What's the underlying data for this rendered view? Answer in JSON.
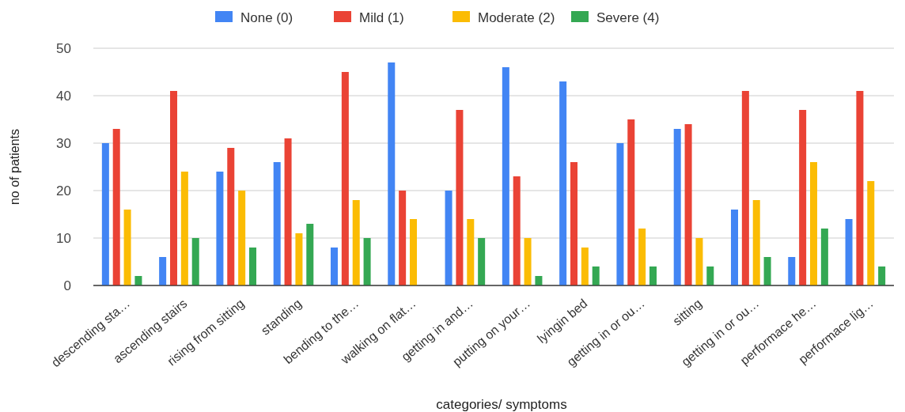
{
  "chart_data": {
    "type": "bar",
    "xlabel": "categories/ symptoms",
    "ylabel": "no of patients",
    "categories": [
      "descending sta…",
      "ascending stairs",
      "rising from sitting",
      "standing",
      "bending to the…",
      "walking on flat…",
      "getting in and…",
      "putting on your…",
      "lyingin bed",
      "getting in or ou…",
      "sitting",
      "getting in or ou…",
      "performace he…",
      "performace lig…"
    ],
    "series": [
      {
        "name": "None (0)",
        "color": "#4285f4",
        "values": [
          30,
          6,
          24,
          26,
          8,
          47,
          20,
          46,
          43,
          30,
          33,
          16,
          6,
          14
        ]
      },
      {
        "name": "Mild (1)",
        "color": "#ea4335",
        "values": [
          33,
          41,
          29,
          31,
          45,
          20,
          37,
          23,
          26,
          35,
          34,
          41,
          37,
          41
        ]
      },
      {
        "name": "Moderate (2)",
        "color": "#fbbc04",
        "values": [
          16,
          24,
          20,
          11,
          18,
          14,
          14,
          10,
          8,
          12,
          10,
          18,
          26,
          22
        ]
      },
      {
        "name": "Severe (4)",
        "color": "#34a853",
        "values": [
          2,
          10,
          8,
          13,
          10,
          0,
          10,
          2,
          4,
          4,
          4,
          6,
          12,
          4
        ]
      }
    ],
    "ylim": [
      0,
      50
    ],
    "yticks": [
      0,
      10,
      20,
      30,
      40,
      50
    ],
    "grid": "y",
    "legend": "top"
  }
}
